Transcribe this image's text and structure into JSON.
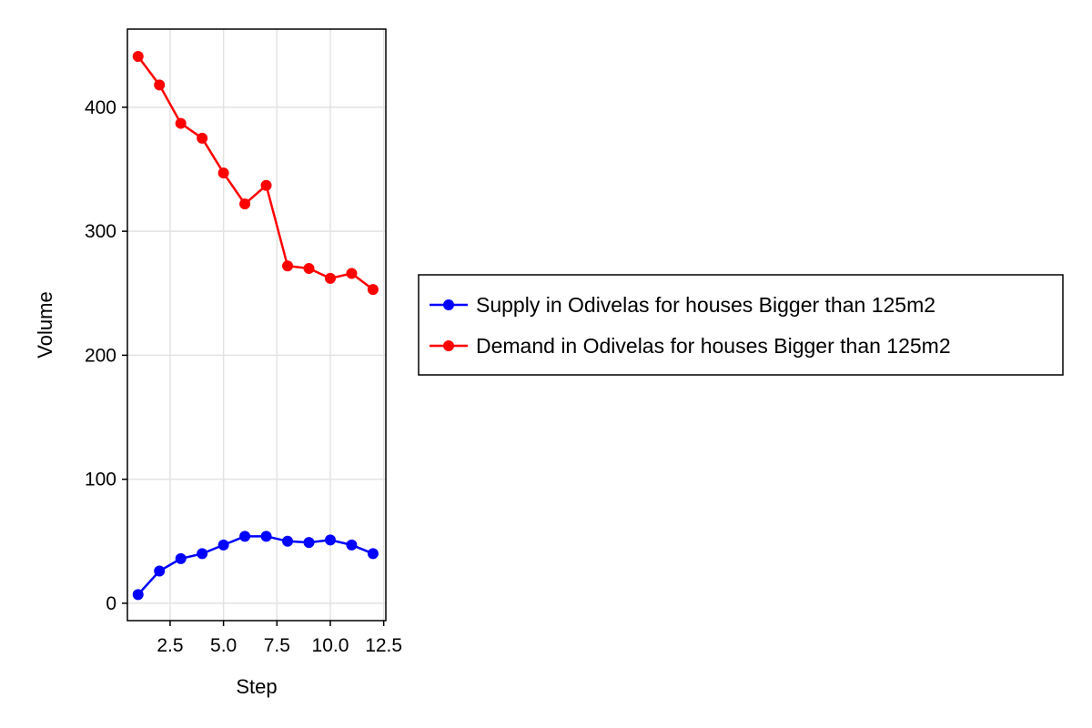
{
  "chart_data": {
    "type": "line",
    "title": "",
    "xlabel": "Step",
    "ylabel": "Volume",
    "xlim": [
      0.5,
      12.6
    ],
    "ylim": [
      -14,
      463
    ],
    "xticks": [
      2.5,
      5.0,
      7.5,
      10.0,
      12.5
    ],
    "xtick_labels": [
      "2.5",
      "5.0",
      "7.5",
      "10.0",
      "12.5"
    ],
    "yticks": [
      0,
      100,
      200,
      300,
      400
    ],
    "ytick_labels": [
      "0",
      "100",
      "200",
      "300",
      "400"
    ],
    "grid": true,
    "legend_position": "right",
    "x": [
      1,
      2,
      3,
      4,
      5,
      6,
      7,
      8,
      9,
      10,
      11,
      12
    ],
    "series": [
      {
        "name": "Supply in Odivelas for houses Bigger than 125m2",
        "color": "#0000ff",
        "values": [
          7,
          26,
          36,
          40,
          47,
          54,
          54,
          50,
          49,
          51,
          47,
          40
        ]
      },
      {
        "name": "Demand in Odivelas for houses Bigger than 125m2",
        "color": "#ff0000",
        "values": [
          441,
          418,
          387,
          375,
          347,
          322,
          337,
          272,
          270,
          262,
          266,
          253
        ]
      }
    ]
  }
}
